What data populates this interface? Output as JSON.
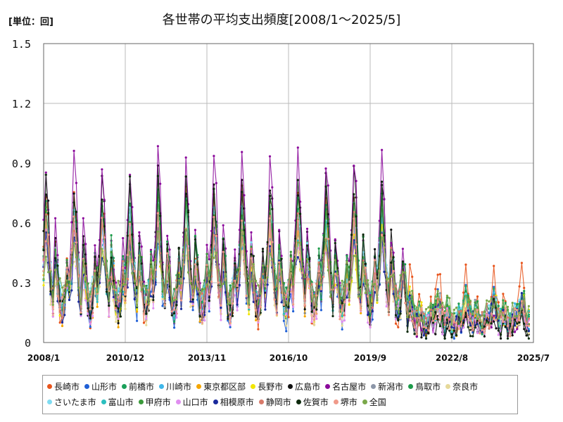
{
  "unit_label": "[単位：回]",
  "chart_data": {
    "type": "line",
    "title": "各世帯の平均支出頻度[2008/1～2025/5]",
    "xlabel": "",
    "ylabel": "",
    "x_start": "2008-01",
    "x_end": "2025-05",
    "xlim": [
      "2008-01",
      "2025-07"
    ],
    "x_tick_labels": [
      "2008/1",
      "2010/12",
      "2013/11",
      "2016/10",
      "2019/9",
      "2022/8",
      "2025/7"
    ],
    "ylim": [
      0,
      1.5
    ],
    "y_tick_labels": [
      "0",
      "0.3",
      "0.6",
      "0.9",
      "1.2",
      "1.5"
    ],
    "grid": true,
    "legend_position": "bottom",
    "series": [
      {
        "name": "長崎市",
        "color": "#e8541c",
        "peak": 0.75,
        "trough": 0.07,
        "tail": 0.32
      },
      {
        "name": "山形市",
        "color": "#1f5fd6",
        "peak": 0.6,
        "trough": 0.08,
        "tail": 0.2
      },
      {
        "name": "前橋市",
        "color": "#1aa05a",
        "peak": 0.7,
        "trough": 0.12,
        "tail": 0.18
      },
      {
        "name": "川崎市",
        "color": "#3fb7ea",
        "peak": 0.58,
        "trough": 0.15,
        "tail": 0.15
      },
      {
        "name": "東京都区部",
        "color": "#f5a600",
        "peak": 0.62,
        "trough": 0.1,
        "tail": 0.14
      },
      {
        "name": "長野市",
        "color": "#f2e600",
        "peak": 0.55,
        "trough": 0.12,
        "tail": 0.2
      },
      {
        "name": "広島市",
        "color": "#111111",
        "peak": 0.85,
        "trough": 0.05,
        "tail": 0.1
      },
      {
        "name": "名古屋市",
        "color": "#8b0a9b",
        "peak": 0.95,
        "trough": 0.1,
        "tail": 0.12
      },
      {
        "name": "新潟市",
        "color": "#8c96a8",
        "peak": 0.6,
        "trough": 0.15,
        "tail": 0.18
      },
      {
        "name": "鳥取市",
        "color": "#1d9b4a",
        "peak": 0.72,
        "trough": 0.15,
        "tail": 0.2
      },
      {
        "name": "奈良市",
        "color": "#e6d99a",
        "peak": 0.5,
        "trough": 0.12,
        "tail": 0.15
      },
      {
        "name": "さいたま市",
        "color": "#7fdcf2",
        "peak": 0.65,
        "trough": 0.15,
        "tail": 0.16
      },
      {
        "name": "富山市",
        "color": "#2bbfbf",
        "peak": 0.55,
        "trough": 0.15,
        "tail": 0.14
      },
      {
        "name": "甲府市",
        "color": "#3a9a3a",
        "peak": 0.68,
        "trough": 0.14,
        "tail": 0.17
      },
      {
        "name": "山口市",
        "color": "#e08ef0",
        "peak": 0.55,
        "trough": 0.1,
        "tail": 0.12
      },
      {
        "name": "相模原市",
        "color": "#1a2a9c",
        "peak": 0.52,
        "trough": 0.12,
        "tail": 0.15
      },
      {
        "name": "静岡市",
        "color": "#d87a6a",
        "peak": 0.6,
        "trough": 0.15,
        "tail": 0.14
      },
      {
        "name": "佐賀市",
        "color": "#0d2a0d",
        "peak": 0.8,
        "trough": 0.06,
        "tail": 0.12
      },
      {
        "name": "堺市",
        "color": "#f09a8a",
        "peak": 0.6,
        "trough": 0.12,
        "tail": 0.13
      },
      {
        "name": "全国",
        "color": "#7aa84a",
        "peak": 0.5,
        "trough": 0.2,
        "tail": 0.18
      }
    ]
  }
}
